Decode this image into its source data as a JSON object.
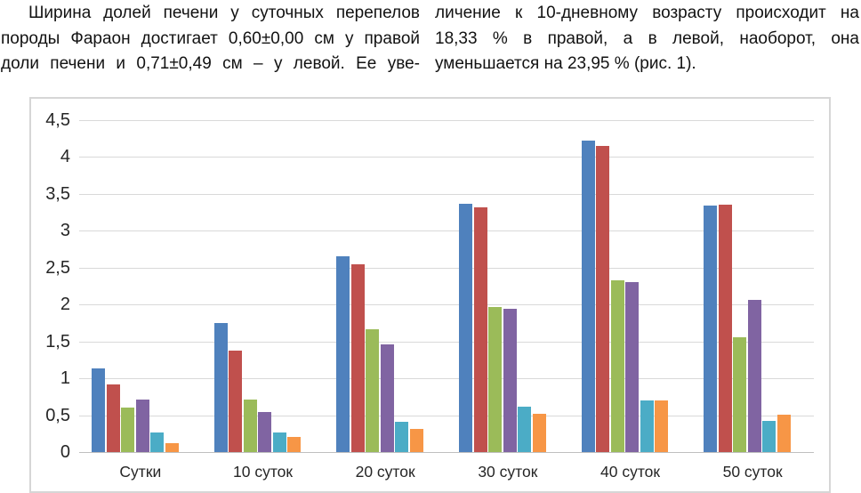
{
  "paragraphs": {
    "left": {
      "first_line_indent": true,
      "last_line_flush_left": false,
      "lines": [
        "Ширина долей печени у суточных перепелов",
        "породы Фараон достигает 0,60±0,00 см у правой",
        "доли печени и 0,71±0,49 см – у левой. Ее уве-"
      ]
    },
    "right": {
      "first_line_indent": false,
      "last_line_flush_left": true,
      "lines": [
        "личение к 10-дневному возрасту происходит на",
        "18,33 % в правой, а в левой, наоборот, она",
        "уменьшается на 23,95 % (рис. 1)."
      ]
    }
  },
  "chart_data": {
    "type": "bar",
    "title": "",
    "xlabel": "",
    "ylabel": "",
    "legend": "none",
    "grid": true,
    "ylim": [
      0,
      4.5
    ],
    "y_tick_labels": [
      "0",
      "0,5",
      "1",
      "1,5",
      "2",
      "2,5",
      "3",
      "3,5",
      "4",
      "4,5"
    ],
    "categories": [
      "Сутки",
      "10 суток",
      "20 суток",
      "30 суток",
      "40 суток",
      "50 суток"
    ],
    "series": [
      {
        "name": "blue",
        "color": "#4F81BD",
        "values": [
          1.13,
          1.75,
          2.65,
          3.37,
          4.22,
          3.34
        ]
      },
      {
        "name": "red",
        "color": "#C0504D",
        "values": [
          0.92,
          1.37,
          2.55,
          3.32,
          4.15,
          3.35
        ]
      },
      {
        "name": "green",
        "color": "#9BBB59",
        "values": [
          0.6,
          0.71,
          1.66,
          1.97,
          2.33,
          1.56
        ]
      },
      {
        "name": "purple",
        "color": "#8064A2",
        "values": [
          0.71,
          0.54,
          1.46,
          1.94,
          2.3,
          2.06
        ]
      },
      {
        "name": "teal",
        "color": "#4BACC6",
        "values": [
          0.27,
          0.27,
          0.41,
          0.62,
          0.7,
          0.42
        ]
      },
      {
        "name": "orange",
        "color": "#F79646",
        "values": [
          0.12,
          0.2,
          0.32,
          0.52,
          0.7,
          0.51
        ]
      }
    ],
    "colors": {
      "gridline": "#D9D9D9",
      "axis": "#BFBFBF",
      "frame_border": "#D6D6D6",
      "tick_text": "#262626"
    }
  }
}
